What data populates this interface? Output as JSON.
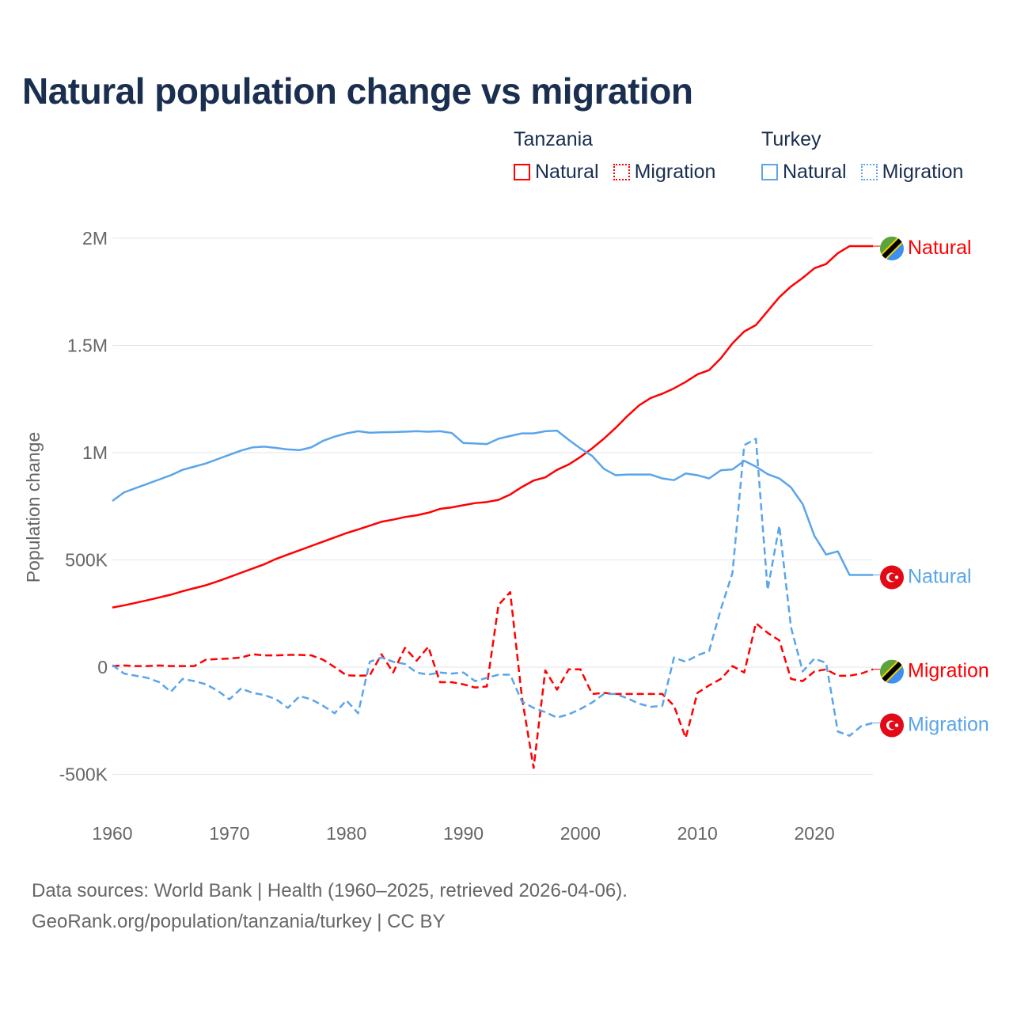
{
  "title": "Natural population change vs migration",
  "legend": {
    "groups": [
      {
        "name": "Tanzania",
        "items": [
          "Natural",
          "Migration"
        ],
        "color": "#ff0000"
      },
      {
        "name": "Turkey",
        "items": [
          "Natural",
          "Migration"
        ],
        "color": "#5aa5ea"
      }
    ]
  },
  "footer": {
    "line1": "Data sources: World Bank | Health (1960–2025, retrieved 2026-04-06).",
    "line2": "GeoRank.org/population/tanzania/turkey | CC BY"
  },
  "chart_data": {
    "type": "line",
    "title": "Natural population change vs migration",
    "xlabel": "",
    "ylabel": "Population change",
    "xlim": [
      1960,
      2025
    ],
    "ylim": [
      -500000,
      2000000
    ],
    "x_ticks": [
      1960,
      1970,
      1980,
      1990,
      2000,
      2010,
      2020
    ],
    "x_tick_labels": [
      "1960",
      "1970",
      "1980",
      "1990",
      "2000",
      "2010",
      "2020"
    ],
    "y_ticks": [
      -500000,
      0,
      500000,
      1000000,
      1500000,
      2000000
    ],
    "y_tick_labels": [
      "-500K",
      "0",
      "500K",
      "1M",
      "1.5M",
      "2M"
    ],
    "grid": "horizontal",
    "units": "thousands",
    "x": [
      1960,
      1961,
      1962,
      1963,
      1964,
      1965,
      1966,
      1967,
      1968,
      1969,
      1970,
      1971,
      1972,
      1973,
      1974,
      1975,
      1976,
      1977,
      1978,
      1979,
      1980,
      1981,
      1982,
      1983,
      1984,
      1985,
      1986,
      1987,
      1988,
      1989,
      1990,
      1991,
      1992,
      1993,
      1994,
      1995,
      1996,
      1997,
      1998,
      1999,
      2000,
      2001,
      2002,
      2003,
      2004,
      2005,
      2006,
      2007,
      2008,
      2009,
      2010,
      2011,
      2012,
      2013,
      2014,
      2015,
      2016,
      2017,
      2018,
      2019,
      2020,
      2021,
      2022,
      2023,
      2024,
      2025
    ],
    "series": [
      {
        "name": "Tanzania Natural",
        "label": "Natural",
        "country": "Tanzania",
        "color": "#ff0000",
        "dash": false,
        "values": [
          278,
          288,
          300,
          312,
          325,
          338,
          354,
          368,
          382,
          400,
          420,
          440,
          460,
          480,
          505,
          525,
          545,
          565,
          585,
          605,
          625,
          642,
          660,
          678,
          688,
          700,
          708,
          720,
          738,
          745,
          755,
          765,
          770,
          780,
          805,
          840,
          870,
          885,
          920,
          945,
          980,
          1020,
          1065,
          1115,
          1170,
          1220,
          1255,
          1275,
          1300,
          1330,
          1365,
          1385,
          1440,
          1510,
          1565,
          1595,
          1660,
          1725,
          1775,
          1815,
          1860,
          1880,
          1930,
          1963,
          1963,
          1963
        ]
      },
      {
        "name": "Turkey Natural",
        "label": "Natural",
        "country": "Turkey",
        "color": "#5aa5ea",
        "dash": false,
        "values": [
          775,
          815,
          835,
          855,
          875,
          895,
          920,
          935,
          950,
          970,
          990,
          1010,
          1025,
          1028,
          1022,
          1015,
          1012,
          1025,
          1055,
          1075,
          1090,
          1100,
          1093,
          1095,
          1096,
          1098,
          1100,
          1098,
          1100,
          1092,
          1045,
          1043,
          1040,
          1065,
          1078,
          1090,
          1090,
          1100,
          1103,
          1060,
          1020,
          985,
          925,
          895,
          898,
          898,
          898,
          880,
          872,
          903,
          895,
          880,
          918,
          922,
          962,
          935,
          900,
          880,
          838,
          760,
          612,
          525,
          540,
          430,
          430,
          430
        ]
      },
      {
        "name": "Tanzania Migration",
        "label": "Migration",
        "country": "Tanzania",
        "color": "#ff0000",
        "dash": true,
        "values": [
          5,
          8,
          5,
          5,
          8,
          5,
          5,
          5,
          35,
          38,
          40,
          45,
          60,
          55,
          55,
          57,
          57,
          55,
          35,
          0,
          -38,
          -40,
          -38,
          60,
          -25,
          90,
          30,
          95,
          -70,
          -70,
          -80,
          -95,
          -90,
          290,
          350,
          -140,
          -470,
          -15,
          -105,
          -10,
          -10,
          -125,
          -120,
          -125,
          -125,
          -125,
          -125,
          -125,
          -180,
          -330,
          -120,
          -85,
          -55,
          5,
          -25,
          205,
          160,
          125,
          -55,
          -65,
          -20,
          -10,
          -40,
          -40,
          -30,
          -10
        ]
      },
      {
        "name": "Turkey Migration",
        "label": "Migration",
        "country": "Turkey",
        "color": "#5aa5ea",
        "dash": true,
        "values": [
          10,
          -30,
          -40,
          -50,
          -70,
          -115,
          -55,
          -65,
          -80,
          -110,
          -150,
          -100,
          -120,
          -130,
          -150,
          -190,
          -135,
          -150,
          -180,
          -215,
          -155,
          -215,
          25,
          45,
          25,
          15,
          -25,
          -35,
          -25,
          -30,
          -25,
          -65,
          -50,
          -35,
          -35,
          -160,
          -190,
          -210,
          -235,
          -220,
          -195,
          -165,
          -125,
          -125,
          -145,
          -170,
          -185,
          -180,
          45,
          25,
          55,
          75,
          270,
          440,
          1035,
          1065,
          360,
          660,
          185,
          -20,
          40,
          20,
          -300,
          -320,
          -275,
          -260
        ]
      }
    ]
  }
}
